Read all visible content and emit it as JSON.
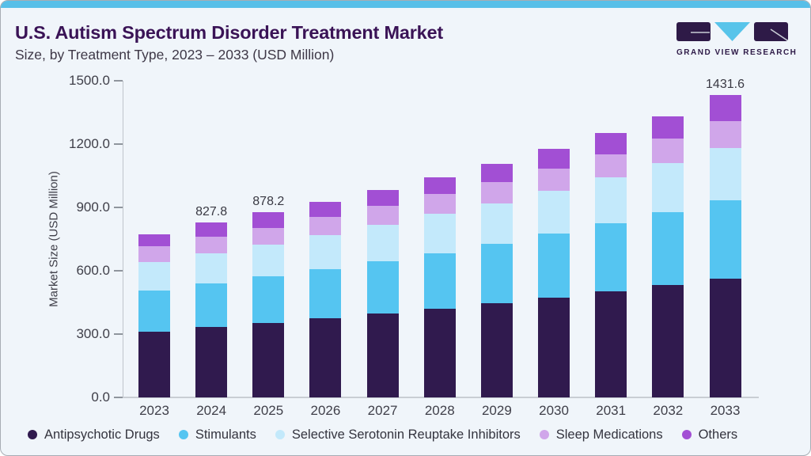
{
  "header": {
    "title": "U.S. Autism Spectrum Disorder Treatment Market",
    "subtitle": "Size, by Treatment Type, 2023 – 2033 (USD Million)",
    "logo_text": "GRAND VIEW RESEARCH"
  },
  "colors": {
    "accent_bar": "#58bfe8",
    "card_background": "#f0f5fa",
    "title_text": "#3a1356",
    "axis_text": "#3f3f49",
    "logo_purple": "#2e1a47",
    "logo_cyan": "#58c4ea"
  },
  "chart_data": {
    "type": "bar",
    "stacked": true,
    "title": "U.S. Autism Spectrum Disorder Treatment Market",
    "subtitle": "Size, by Treatment Type, 2023 – 2033 (USD Million)",
    "categories": [
      "2023",
      "2024",
      "2025",
      "2026",
      "2027",
      "2028",
      "2029",
      "2030",
      "2031",
      "2032",
      "2033"
    ],
    "series": [
      {
        "name": "Antipsychotic Drugs",
        "color": "#301a4e",
        "values": [
          313,
          332,
          354,
          376,
          399,
          421,
          445,
          473,
          502,
          532,
          564
        ]
      },
      {
        "name": "Stimulants",
        "color": "#55c5f1",
        "values": [
          192,
          207,
          219,
          232,
          247,
          263,
          283,
          303,
          322,
          347,
          371
        ]
      },
      {
        "name": "Selective Serotonin Reuptake Inhibitors",
        "color": "#c3e9fb",
        "values": [
          135,
          145,
          152,
          160,
          172,
          185,
          192,
          203,
          219,
          232,
          248
        ]
      },
      {
        "name": "Sleep Medications",
        "color": "#d0a6ea",
        "values": [
          75,
          76,
          79,
          86,
          88,
          94,
          100,
          106,
          110,
          115,
          124
        ]
      },
      {
        "name": "Others",
        "color": "#a24fd4",
        "values": [
          59,
          67.8,
          74.2,
          74,
          77,
          80,
          88,
          93,
          99,
          105,
          124.6
        ]
      }
    ],
    "data_labels": {
      "2024": "827.8",
      "2025": "878.2",
      "2033": "1431.6"
    },
    "xlabel": "",
    "ylabel": "Market Size (USD Million)",
    "yticks": [
      "0.0",
      "300.0",
      "600.0",
      "900.0",
      "1200.0",
      "1500.0"
    ],
    "ylim": [
      0,
      1500
    ],
    "grid": false,
    "legend_position": "bottom"
  }
}
